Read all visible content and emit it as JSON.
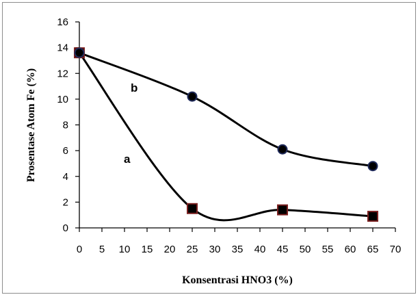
{
  "chart_data": {
    "type": "line",
    "title": "",
    "xlabel": "Konsentrasi HNO3 (%)",
    "ylabel": "Prosentase Atom Fe (%)",
    "xlim": [
      0,
      70
    ],
    "ylim": [
      0,
      16
    ],
    "xticks": [
      0,
      5,
      10,
      15,
      20,
      25,
      30,
      35,
      40,
      45,
      50,
      55,
      60,
      65,
      70
    ],
    "yticks": [
      0,
      2,
      4,
      6,
      8,
      10,
      12,
      14,
      16
    ],
    "grid": false,
    "legend": "none",
    "smooth": true,
    "series": [
      {
        "name": "a",
        "marker": "square",
        "color": "#000000",
        "marker_edge": "#7a1f1f",
        "x": [
          0,
          25,
          45,
          65
        ],
        "y": [
          13.6,
          1.5,
          1.4,
          0.9
        ]
      },
      {
        "name": "b",
        "marker": "circle",
        "color": "#000000",
        "marker_edge": "#1f2a5a",
        "x": [
          0,
          25,
          45,
          65
        ],
        "y": [
          13.6,
          10.2,
          6.1,
          4.8
        ]
      }
    ]
  }
}
